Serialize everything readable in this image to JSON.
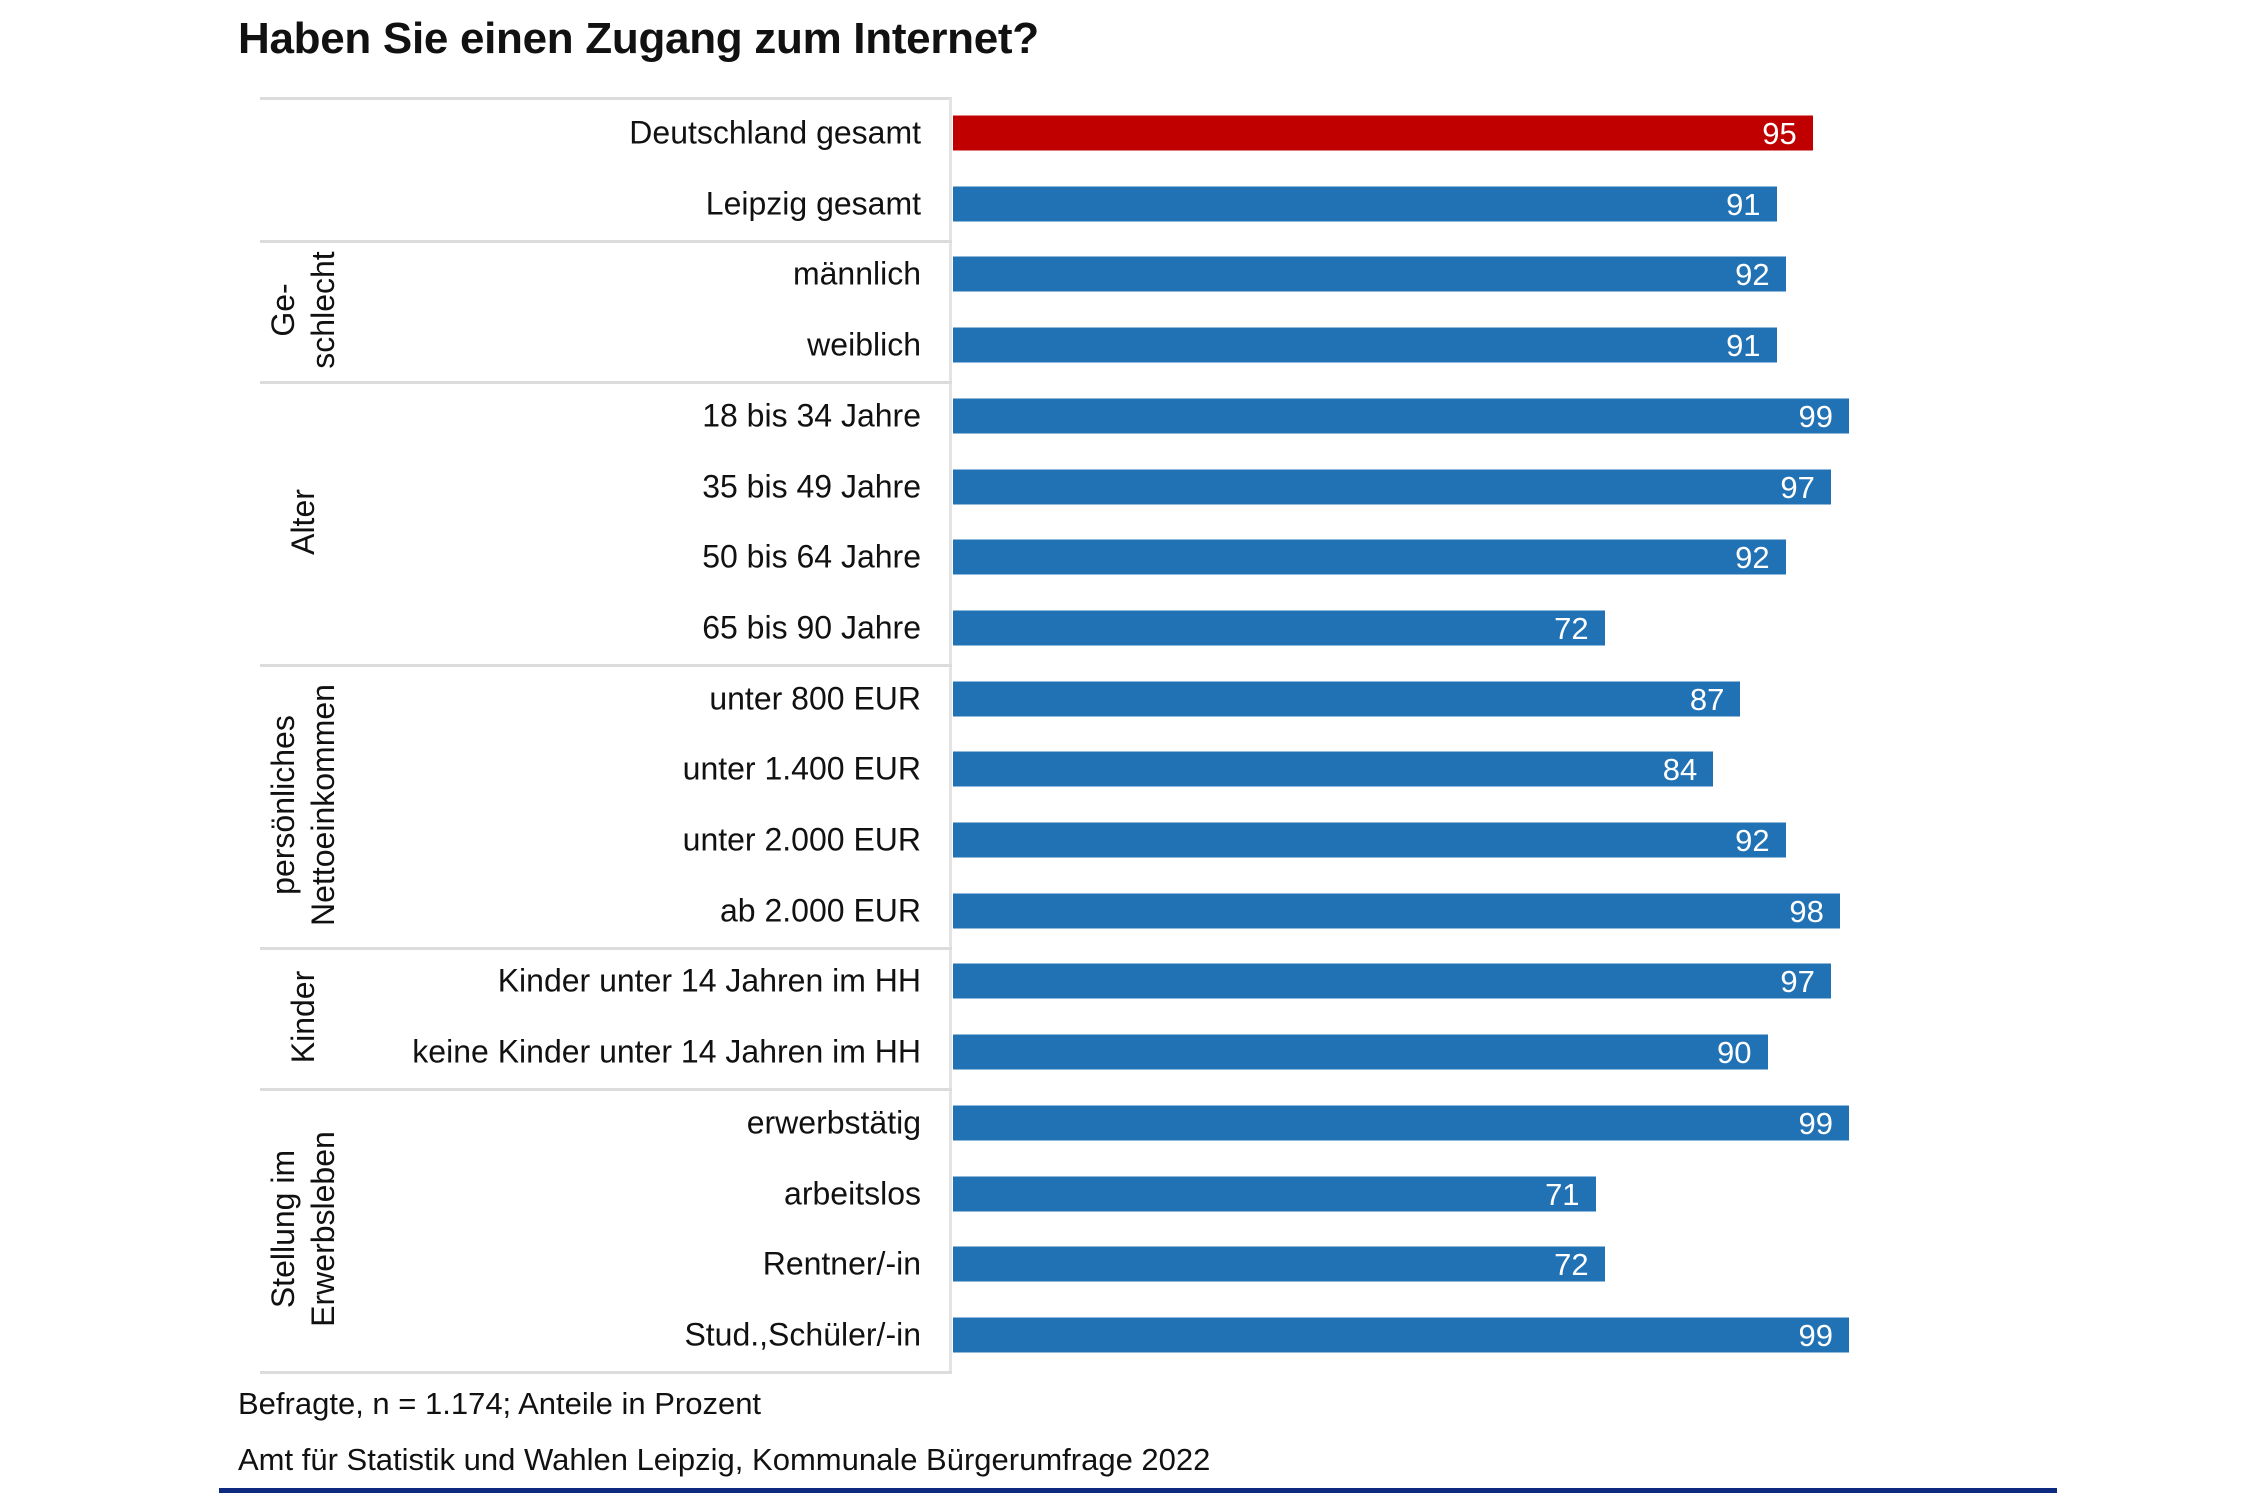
{
  "chart_data": {
    "type": "bar",
    "orientation": "horizontal",
    "title": "Haben Sie einen Zugang zum Internet?",
    "xlim": [
      0,
      100
    ],
    "grid": false,
    "colors": {
      "highlight": "#c00000",
      "default": "#2171b5"
    },
    "groups": [
      {
        "label": "",
        "rows": [
          0,
          1
        ]
      },
      {
        "label": "Ge-\nschlecht",
        "rows": [
          2,
          3
        ]
      },
      {
        "label": "Alter",
        "rows": [
          4,
          5,
          6,
          7
        ]
      },
      {
        "label": "persönliches\nNettoeinkommen",
        "rows": [
          8,
          9,
          10,
          11
        ]
      },
      {
        "label": "Kinder",
        "rows": [
          12,
          13
        ]
      },
      {
        "label": "Stellung im\nErwerbsleben",
        "rows": [
          14,
          15,
          16,
          17
        ]
      }
    ],
    "categories": [
      "Deutschland gesamt",
      "Leipzig gesamt",
      "männlich",
      "weiblich",
      "18 bis 34 Jahre",
      "35 bis 49 Jahre",
      "50 bis 64 Jahre",
      "65 bis 90 Jahre",
      "unter 800 EUR",
      "unter 1.400 EUR",
      "unter 2.000 EUR",
      "ab 2.000 EUR",
      "Kinder unter 14 Jahren im HH",
      "keine Kinder unter 14 Jahren im HH",
      "erwerbstätig",
      "arbeitslos",
      "Rentner/-in",
      "Stud.,Schüler/-in"
    ],
    "values": [
      95,
      91,
      92,
      91,
      99,
      97,
      92,
      72,
      87,
      84,
      92,
      98,
      97,
      90,
      99,
      71,
      72,
      99
    ],
    "highlight_index": 0
  },
  "footnotes": {
    "sample": "Befragte, n = 1.174; Anteile in Prozent",
    "source": "Amt für Statistik und Wahlen Leipzig, Kommunale Bürgerumfrage 2022"
  }
}
